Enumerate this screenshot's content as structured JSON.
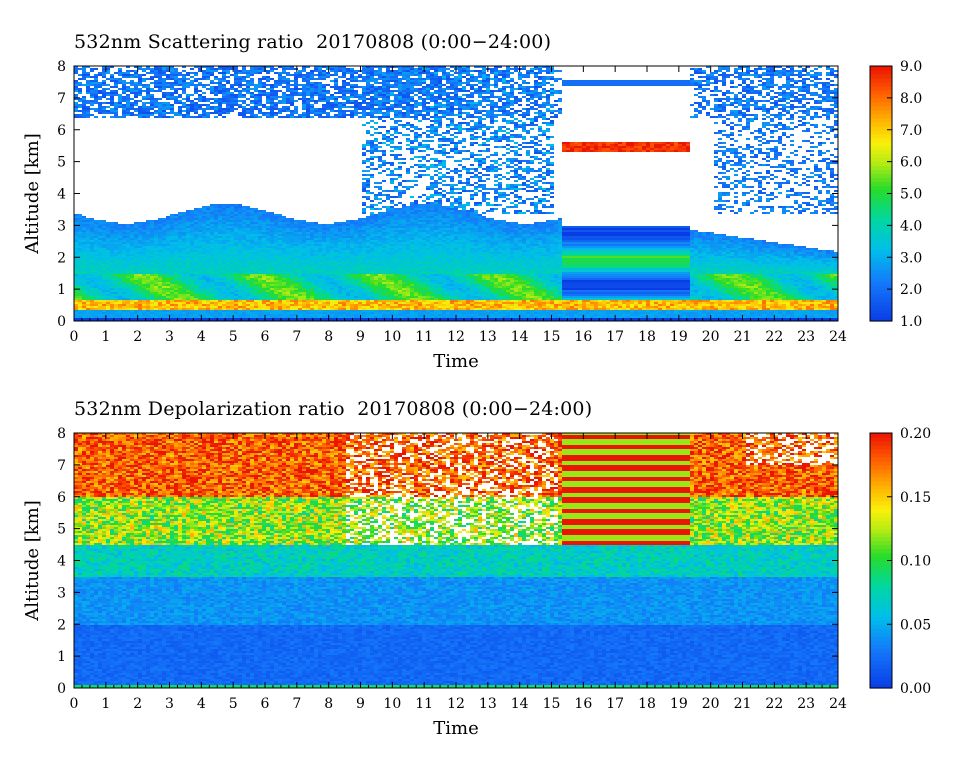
{
  "chart_data": [
    {
      "type": "heatmap",
      "title": "532nm Scattering ratio  20170808 (0:00−24:00)",
      "xlabel": "Time",
      "ylabel": "Altitude [km]",
      "xlim": [
        0,
        24
      ],
      "ylim": [
        0,
        8
      ],
      "x_ticks": [
        "0",
        "1",
        "2",
        "3",
        "4",
        "5",
        "6",
        "7",
        "8",
        "9",
        "10",
        "11",
        "12",
        "13",
        "14",
        "15",
        "16",
        "17",
        "18",
        "19",
        "20",
        "21",
        "22",
        "23",
        "24"
      ],
      "y_ticks": [
        "0",
        "1",
        "2",
        "3",
        "4",
        "5",
        "6",
        "7",
        "8"
      ],
      "colorbar": {
        "range": [
          1.0,
          9.0
        ],
        "ticks": [
          "1.0",
          "2.0",
          "3.0",
          "4.0",
          "5.0",
          "6.0",
          "7.0",
          "8.0",
          "9.0"
        ]
      },
      "layers": [
        {
          "x": [
            0,
            24
          ],
          "y": [
            0.15,
            0.4
          ],
          "value": 2.6
        },
        {
          "x": [
            0,
            24
          ],
          "y": [
            0.4,
            0.7
          ],
          "value": 7.0
        },
        {
          "x": [
            0,
            15.3
          ],
          "y": [
            0.7,
            1.6
          ],
          "value": 4.6
        },
        {
          "x": [
            0,
            15.3
          ],
          "y": [
            1.6,
            2.6
          ],
          "value": 3.3
        },
        {
          "x": [
            0,
            15.3
          ],
          "y": [
            2.6,
            3.4
          ],
          "value": 2.2
        },
        {
          "x": [
            15.3,
            19.3
          ],
          "y": [
            0.7,
            3.0
          ],
          "value": 4.0
        },
        {
          "x": [
            19.3,
            24
          ],
          "y": [
            0.7,
            2.0
          ],
          "value": 3.5
        },
        {
          "x": [
            19.3,
            24
          ],
          "y": [
            2.0,
            3.0
          ],
          "value": 2.0
        },
        {
          "x": [
            0,
            15.3
          ],
          "y": [
            6.6,
            8.0
          ],
          "value": 1.6
        },
        {
          "x": [
            15.3,
            19.3
          ],
          "y": [
            5.4,
            5.6
          ],
          "value": 8.5
        }
      ]
    },
    {
      "type": "heatmap",
      "title": "532nm Depolarization ratio  20170808 (0:00−24:00)",
      "xlabel": "Time",
      "ylabel": "Altitude [km]",
      "xlim": [
        0,
        24
      ],
      "ylim": [
        0,
        8
      ],
      "x_ticks": [
        "0",
        "1",
        "2",
        "3",
        "4",
        "5",
        "6",
        "7",
        "8",
        "9",
        "10",
        "11",
        "12",
        "13",
        "14",
        "15",
        "16",
        "17",
        "18",
        "19",
        "20",
        "21",
        "22",
        "23",
        "24"
      ],
      "y_ticks": [
        "0",
        "1",
        "2",
        "3",
        "4",
        "5",
        "6",
        "7",
        "8"
      ],
      "colorbar": {
        "range": [
          0.0,
          0.2
        ],
        "ticks": [
          "0.00",
          "0.05",
          "0.10",
          "0.15",
          "0.20"
        ]
      },
      "layers": [
        {
          "x": [
            0,
            24
          ],
          "y": [
            0.05,
            0.15
          ],
          "value": 0.09
        },
        {
          "x": [
            0,
            24
          ],
          "y": [
            0.15,
            2.0
          ],
          "value": 0.02
        },
        {
          "x": [
            0,
            24
          ],
          "y": [
            2.0,
            3.5
          ],
          "value": 0.035
        },
        {
          "x": [
            0,
            24
          ],
          "y": [
            3.5,
            4.5
          ],
          "value": 0.06
        },
        {
          "x": [
            0,
            24
          ],
          "y": [
            4.5,
            6.0
          ],
          "value": 0.11
        },
        {
          "x": [
            0,
            24
          ],
          "y": [
            6.0,
            8.0
          ],
          "value": 0.18
        }
      ]
    }
  ]
}
